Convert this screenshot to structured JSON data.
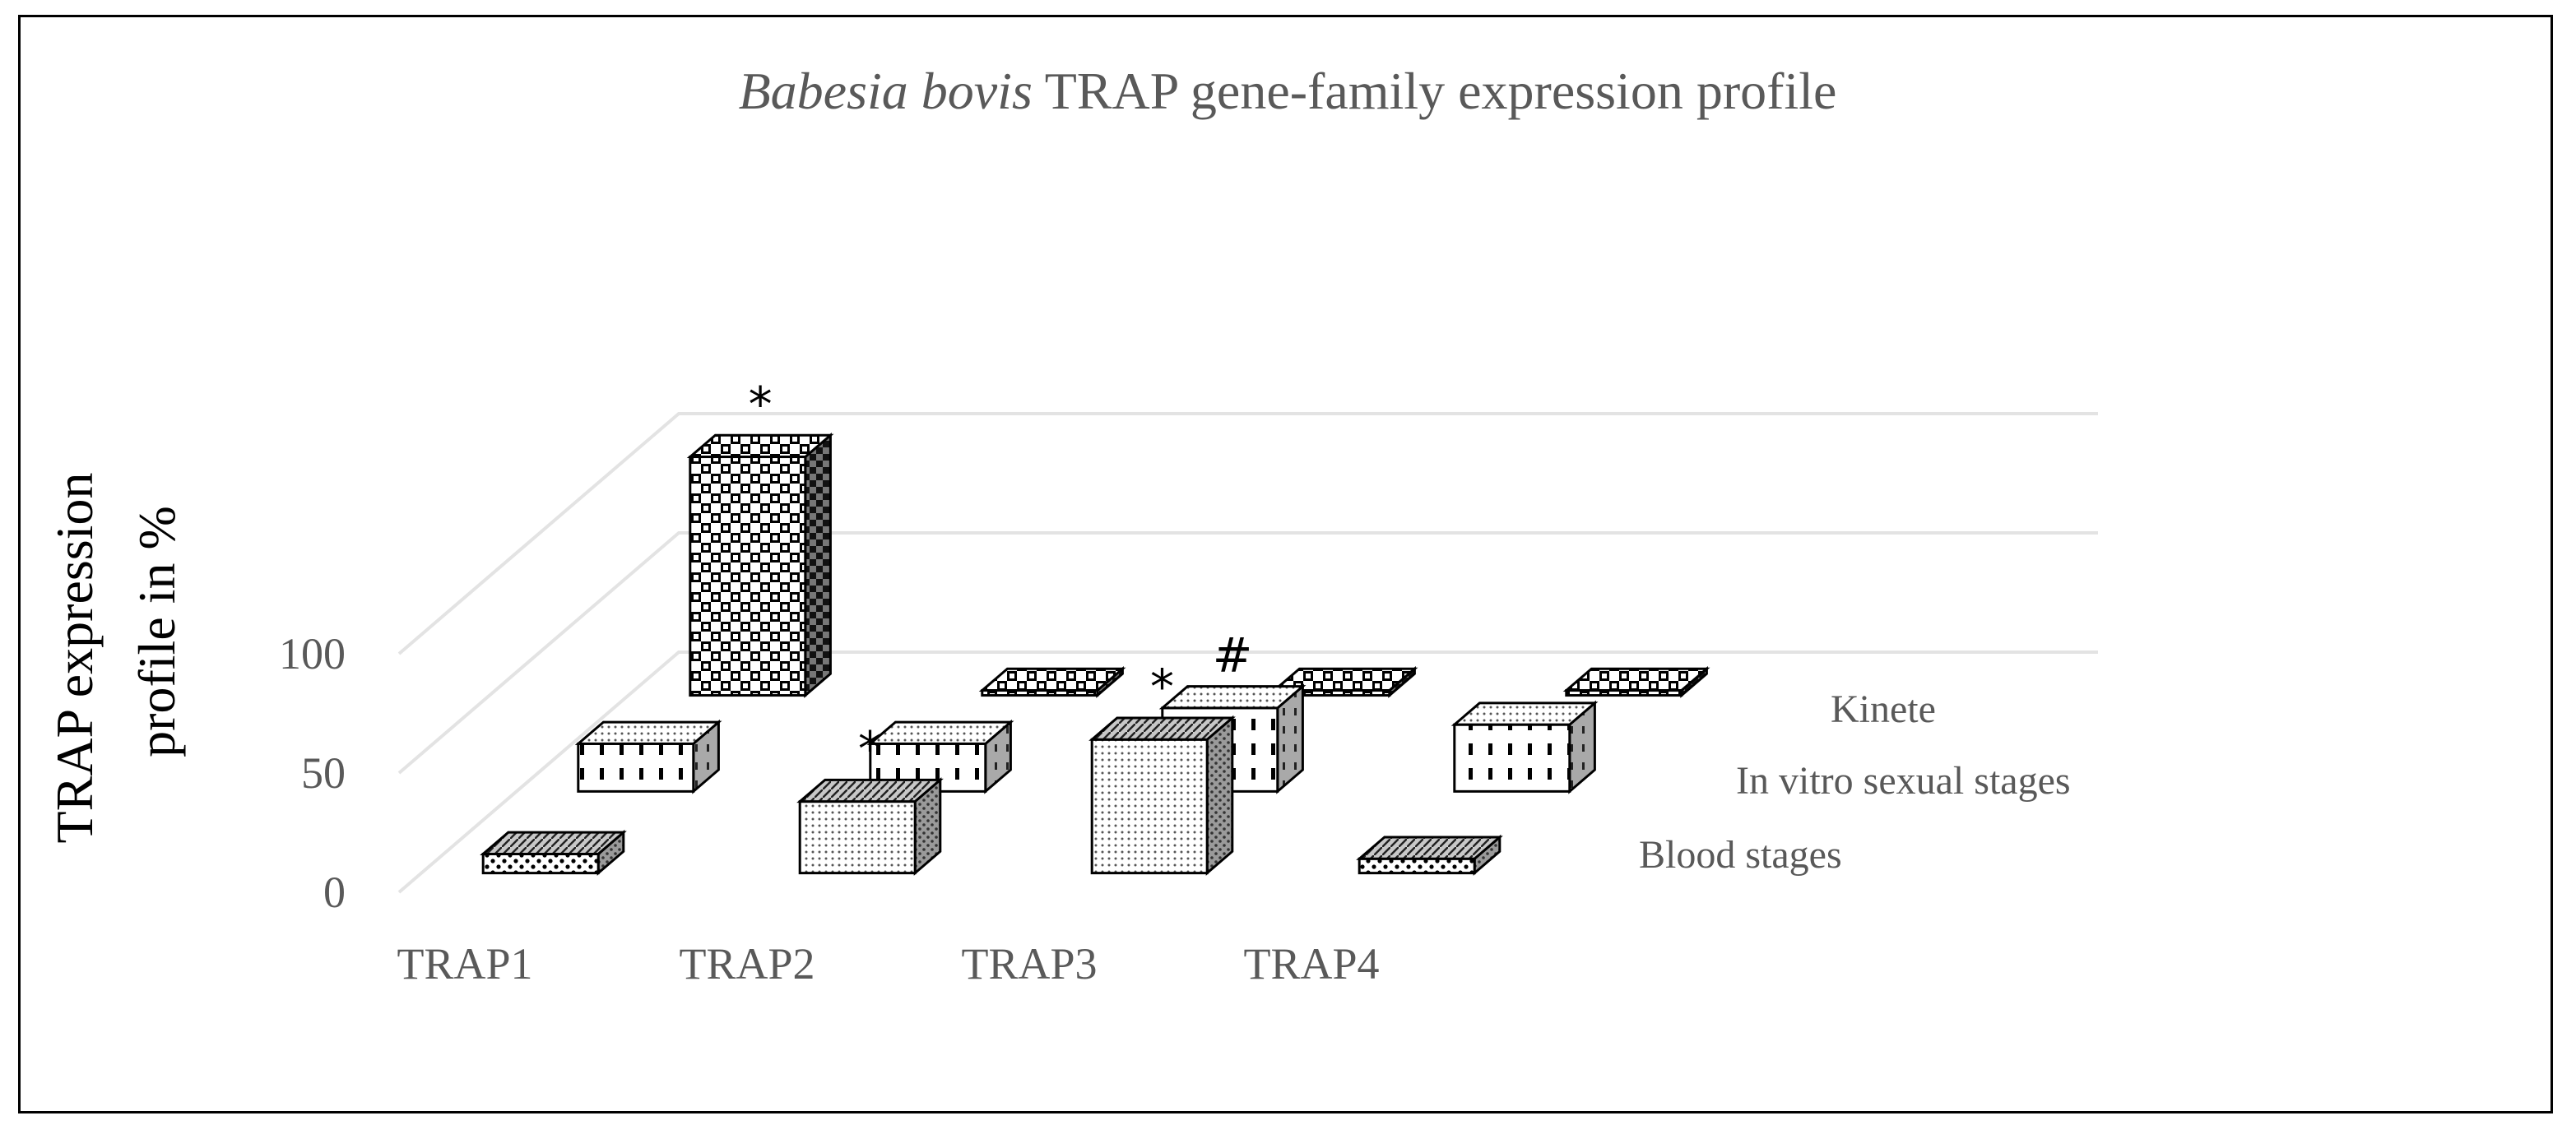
{
  "chart_data": {
    "type": "bar",
    "subtype": "3d-clustered-depth",
    "title_italic": "Babesia bovis",
    "title_rest": " TRAP gene-family expression profile",
    "ylabel_line1": "TRAP  expression",
    "ylabel_line2": "profile in %",
    "xlabel": "",
    "ylim": [
      0,
      100
    ],
    "yticks": [
      "0",
      "50",
      "100"
    ],
    "grid": true,
    "legend": "none",
    "categories": [
      "TRAP1",
      "TRAP2",
      "TRAP3",
      "TRAP4"
    ],
    "series": [
      {
        "name": "Blood stages",
        "values": [
          8,
          30,
          56,
          6
        ],
        "markers": [
          "",
          "*",
          "*",
          ""
        ],
        "pattern": "dots",
        "top_pattern": "diag"
      },
      {
        "name": "In vitro sexual stages",
        "values": [
          20,
          20,
          35,
          28
        ],
        "markers": [
          "",
          "",
          "#",
          ""
        ],
        "pattern": "dash",
        "top_pattern": "dots"
      },
      {
        "name": "Kinete",
        "values": [
          100,
          1,
          1,
          1
        ],
        "markers": [
          "*",
          "",
          "",
          ""
        ],
        "pattern": "check",
        "top_pattern": "check"
      }
    ]
  }
}
